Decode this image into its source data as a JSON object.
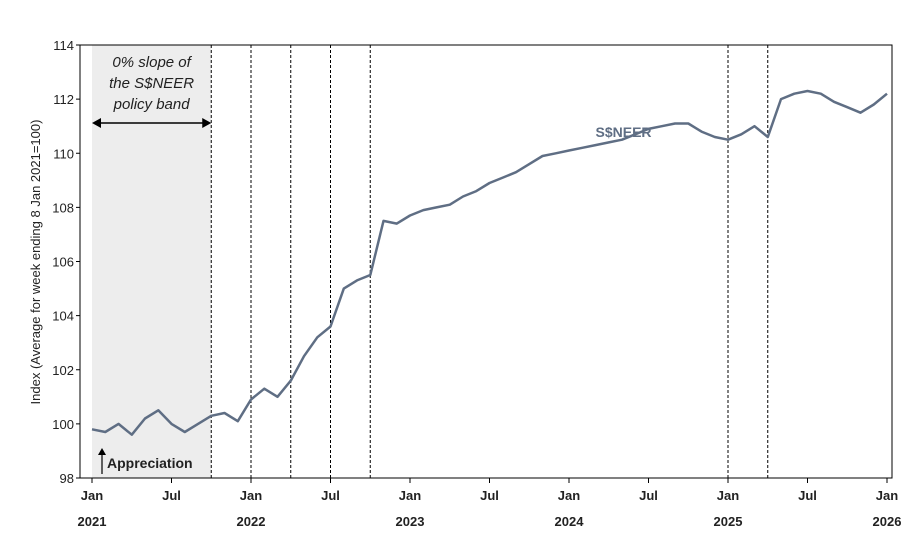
{
  "chart_data": {
    "type": "line",
    "y_label": "Index (Average for week ending 8 Jan 2021=100)",
    "x": [
      "2021-01",
      "2021-02",
      "2021-03",
      "2021-04",
      "2021-05",
      "2021-06",
      "2021-07",
      "2021-08",
      "2021-09",
      "2021-10",
      "2021-11",
      "2021-12",
      "2022-01",
      "2022-02",
      "2022-03",
      "2022-04",
      "2022-05",
      "2022-06",
      "2022-07",
      "2022-08",
      "2022-09",
      "2022-10",
      "2022-11",
      "2022-12",
      "2023-01",
      "2023-02",
      "2023-03",
      "2023-04",
      "2023-05",
      "2023-06",
      "2023-07",
      "2023-08",
      "2023-09",
      "2023-10",
      "2023-11",
      "2023-12",
      "2024-01",
      "2024-02",
      "2024-03",
      "2024-04",
      "2024-05",
      "2024-06",
      "2024-07",
      "2024-08",
      "2024-09",
      "2024-10",
      "2024-11",
      "2024-12",
      "2025-01",
      "2025-02",
      "2025-03",
      "2025-04",
      "2025-05",
      "2025-06",
      "2025-07",
      "2025-08",
      "2025-09",
      "2025-10",
      "2025-11",
      "2025-12",
      "2026-01"
    ],
    "series": [
      {
        "name": "S$NEER",
        "color": "#5f6e84",
        "values": [
          99.8,
          99.7,
          100.0,
          99.6,
          100.2,
          100.5,
          100.0,
          99.7,
          100.0,
          100.3,
          100.4,
          100.1,
          100.9,
          101.3,
          101.0,
          101.6,
          102.5,
          103.2,
          103.6,
          105.0,
          105.3,
          105.5,
          107.5,
          107.4,
          107.7,
          107.9,
          108.0,
          108.1,
          108.4,
          108.6,
          108.9,
          109.1,
          109.3,
          109.6,
          109.9,
          110.0,
          110.1,
          110.2,
          110.3,
          110.4,
          110.5,
          110.7,
          110.9,
          111.0,
          111.1,
          111.1,
          110.8,
          110.6,
          110.5,
          110.7,
          111.0,
          110.6,
          112.0,
          112.2,
          112.3,
          112.2,
          111.9,
          111.7,
          111.5,
          111.8,
          112.2
        ]
      }
    ],
    "xlim": [
      "2021-01",
      "2026-01"
    ],
    "xticks": [
      {
        "value": "2021-01",
        "label": "Jan",
        "year": "2021"
      },
      {
        "value": "2021-07",
        "label": "Jul"
      },
      {
        "value": "2022-01",
        "label": "Jan",
        "year": "2022"
      },
      {
        "value": "2022-07",
        "label": "Jul"
      },
      {
        "value": "2023-01",
        "label": "Jan",
        "year": "2023"
      },
      {
        "value": "2023-07",
        "label": "Jul"
      },
      {
        "value": "2024-01",
        "label": "Jan",
        "year": "2024"
      },
      {
        "value": "2024-07",
        "label": "Jul"
      },
      {
        "value": "2025-01",
        "label": "Jan",
        "year": "2025"
      },
      {
        "value": "2025-07",
        "label": "Jul"
      },
      {
        "value": "2026-01",
        "label": "Jan",
        "year": "2026"
      }
    ],
    "ylim": [
      98,
      114
    ],
    "yticks": [
      98,
      100,
      102,
      104,
      106,
      108,
      110,
      112,
      114
    ],
    "policy_lines": [
      "2021-10",
      "2022-01",
      "2022-04",
      "2022-07",
      "2022-10",
      "2025-01",
      "2025-04"
    ],
    "shaded_range": {
      "from": "2021-01",
      "to": "2021-10",
      "label": [
        "0% slope of",
        "the S$NEER",
        "policy band"
      ]
    },
    "annotation": "Appreciation",
    "series_label": {
      "text": "S$NEER",
      "x": "2024-03",
      "y": 110.6
    }
  }
}
